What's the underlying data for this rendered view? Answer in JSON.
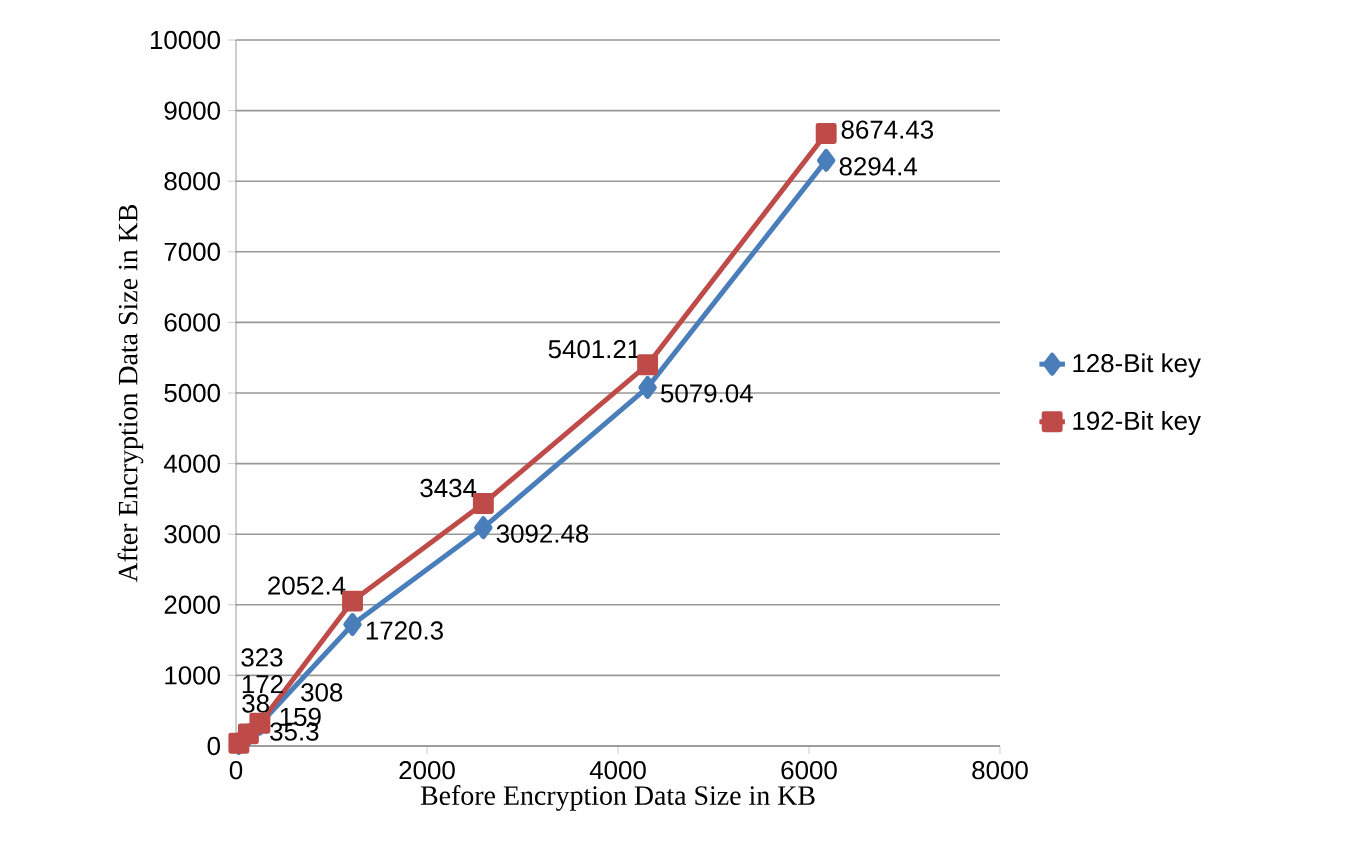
{
  "chart_data": {
    "type": "line",
    "xlabel": "Before Encryption Data Size in KB",
    "ylabel": "After Encryption Data Size in KB",
    "xlim": [
      0,
      8000
    ],
    "xticks": [
      0,
      2000,
      4000,
      6000,
      8000
    ],
    "ylim": [
      0,
      10000
    ],
    "yticks": [
      0,
      1000,
      2000,
      3000,
      4000,
      5000,
      6000,
      7000,
      8000,
      9000,
      10000
    ],
    "grid": "y",
    "legend": "right",
    "data_labels": true,
    "series": [
      {
        "name": "128-Bit key",
        "color": "#4a7ebb",
        "marker": "diamond",
        "x": [
          30,
          130,
          250,
          1220,
          2590,
          4310,
          6180
        ],
        "values": [
          35.3,
          159,
          308,
          1720.3,
          3092.48,
          5079.04,
          8294.4
        ]
      },
      {
        "name": "192-Bit key",
        "color": "#be4b48",
        "marker": "square",
        "x": [
          30,
          130,
          250,
          1220,
          2590,
          4310,
          6180
        ],
        "values": [
          38,
          172,
          323,
          2052.4,
          3434,
          5401.21,
          8674.43
        ]
      }
    ]
  }
}
